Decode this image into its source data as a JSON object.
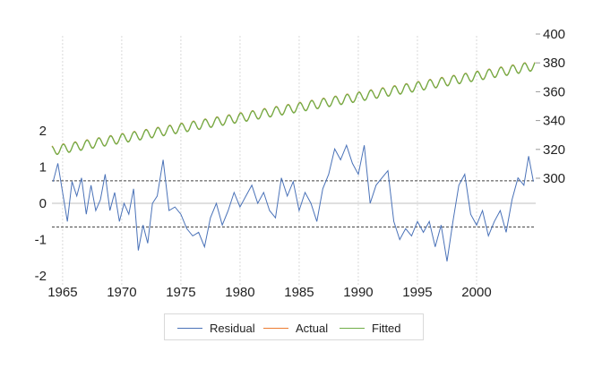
{
  "chart_data": {
    "type": "line",
    "title": "",
    "xlabel": "",
    "ylabel": "",
    "x_ticks": [
      "1965",
      "1970",
      "1975",
      "1980",
      "1985",
      "1990",
      "1995",
      "2000"
    ],
    "x_range": [
      1964.1,
      2005.0
    ],
    "left_axis": {
      "ticks": [
        "-2",
        "-1",
        "0",
        "1",
        "2"
      ],
      "range": [
        -2,
        2
      ]
    },
    "right_axis": {
      "ticks": [
        "300",
        "320",
        "340",
        "360",
        "380",
        "400"
      ],
      "range": [
        280,
        400
      ]
    },
    "grid": {
      "vertical": true,
      "horizontal": false
    },
    "reference_lines": [
      {
        "axis": "left",
        "value": 0,
        "style": "solid"
      },
      {
        "axis": "left",
        "value": 0.62,
        "style": "dashed"
      },
      {
        "axis": "left",
        "value": -0.65,
        "style": "dashed"
      }
    ],
    "legend": {
      "placement": "bottom",
      "entries": [
        "Residual",
        "Actual",
        "Fitted"
      ]
    },
    "colors": {
      "Residual": "#4a72b8",
      "Actual": "#ed7d31",
      "Fitted": "#70ad47"
    },
    "series": [
      {
        "name": "Residual",
        "axis": "left",
        "x": [
          1964.2,
          1964.6,
          1965.0,
          1965.4,
          1965.8,
          1966.2,
          1966.6,
          1967.0,
          1967.4,
          1967.8,
          1968.2,
          1968.6,
          1969.0,
          1969.4,
          1969.8,
          1970.2,
          1970.6,
          1971.0,
          1971.4,
          1971.8,
          1972.2,
          1972.6,
          1973.0,
          1973.5,
          1974.0,
          1974.5,
          1975.0,
          1975.5,
          1976.0,
          1976.5,
          1977.0,
          1977.5,
          1978.0,
          1978.5,
          1979.0,
          1979.5,
          1980.0,
          1980.5,
          1981.0,
          1981.5,
          1982.0,
          1982.5,
          1983.0,
          1983.5,
          1984.0,
          1984.5,
          1985.0,
          1985.5,
          1986.0,
          1986.5,
          1987.0,
          1987.5,
          1988.0,
          1988.5,
          1989.0,
          1989.5,
          1990.0,
          1990.5,
          1991.0,
          1991.5,
          1992.0,
          1992.5,
          1993.0,
          1993.5,
          1994.0,
          1994.5,
          1995.0,
          1995.5,
          1996.0,
          1996.5,
          1997.0,
          1997.5,
          1998.0,
          1998.5,
          1999.0,
          1999.5,
          2000.0,
          2000.5,
          2001.0,
          2001.5,
          2002.0,
          2002.5,
          2003.0,
          2003.5,
          2004.0,
          2004.4,
          2004.8
        ],
        "values": [
          0.6,
          1.1,
          0.3,
          -0.5,
          0.6,
          0.2,
          0.7,
          -0.3,
          0.5,
          -0.2,
          0.1,
          0.8,
          -0.2,
          0.3,
          -0.5,
          0.0,
          -0.3,
          0.4,
          -1.3,
          -0.6,
          -1.1,
          0.0,
          0.2,
          1.2,
          -0.2,
          -0.1,
          -0.3,
          -0.7,
          -0.9,
          -0.8,
          -1.2,
          -0.4,
          0.0,
          -0.6,
          -0.2,
          0.3,
          -0.1,
          0.2,
          0.5,
          0.0,
          0.3,
          -0.2,
          -0.4,
          0.7,
          0.2,
          0.6,
          -0.2,
          0.3,
          0.0,
          -0.5,
          0.4,
          0.8,
          1.5,
          1.2,
          1.6,
          1.1,
          0.8,
          1.6,
          0.0,
          0.5,
          0.7,
          0.9,
          -0.5,
          -1.0,
          -0.7,
          -0.9,
          -0.5,
          -0.8,
          -0.5,
          -1.2,
          -0.6,
          -1.6,
          -0.5,
          0.5,
          0.8,
          -0.3,
          -0.6,
          -0.2,
          -0.9,
          -0.5,
          -0.2,
          -0.8,
          0.1,
          0.7,
          0.5,
          1.3,
          0.6
        ]
      },
      {
        "name": "Actual",
        "axis": "right",
        "trend": {
          "x_start": 1964.1,
          "y_start": 319.3,
          "x_end": 2005.0,
          "y_end": 378.3,
          "seasonal_amplitude": 3.2
        }
      },
      {
        "name": "Fitted",
        "axis": "right",
        "trend": {
          "x_start": 1964.1,
          "y_start": 319.0,
          "x_end": 2005.0,
          "y_end": 378.0,
          "seasonal_amplitude": 3.2
        }
      }
    ]
  }
}
